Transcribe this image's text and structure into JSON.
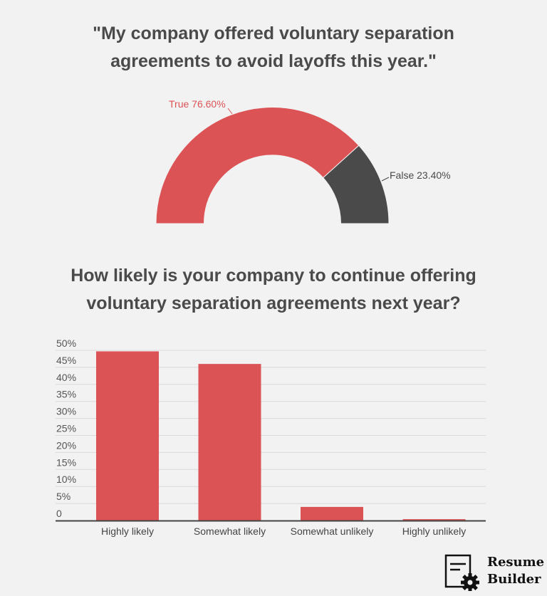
{
  "titles": {
    "top": "\"My company offered voluntary separation agreements to avoid layoffs this year.\"",
    "top_line1": "\"My company offered voluntary separation",
    "top_line2": "agreements to avoid layoffs this year.\"",
    "bottom_line1": "How likely is your company to continue offering",
    "bottom_line2": "voluntary separation agreements next year?"
  },
  "colors": {
    "red": "#dc5356",
    "dark": "#4a4a4a",
    "background": "#f2f2f2",
    "grid": "#d9d9d9"
  },
  "logo": {
    "line1": "Resume",
    "line2": "Builder",
    "icon": "document-gear-icon"
  },
  "chart_data": [
    {
      "type": "pie",
      "variant": "half-donut",
      "title": "\"My company offered voluntary separation agreements to avoid layoffs this year.\"",
      "categories": [
        "True",
        "False"
      ],
      "values": [
        76.6,
        23.4
      ],
      "labels": [
        "True 76.60%",
        "False 23.40%"
      ],
      "colors": [
        "#dc5356",
        "#4a4a4a"
      ]
    },
    {
      "type": "bar",
      "title": "How likely is your company to continue offering voluntary separation agreements next year?",
      "categories": [
        "Highly likely",
        "Somewhat likely",
        "Somewhat unlikely",
        "Highly unlikely"
      ],
      "values": [
        49.7,
        46.0,
        4.0,
        0.4
      ],
      "xlabel": "",
      "ylabel": "",
      "ylim": [
        0,
        50
      ],
      "yticks": [
        "0",
        "5%",
        "10%",
        "15%",
        "20%",
        "25%",
        "30%",
        "35%",
        "40%",
        "45%",
        "50%"
      ],
      "grid": true,
      "legend": "none",
      "color": "#dc5356"
    }
  ]
}
